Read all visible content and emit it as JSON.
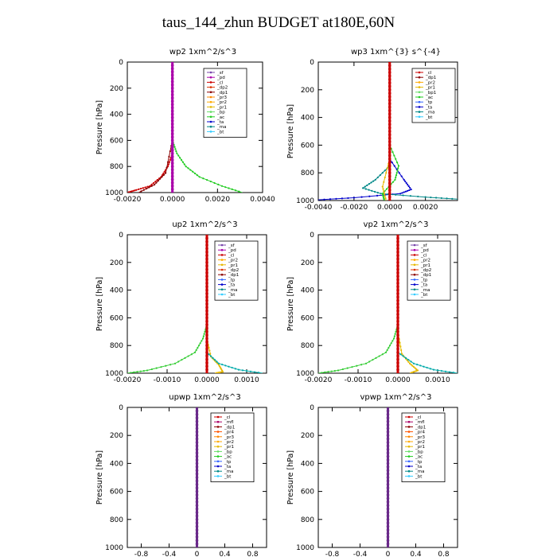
{
  "title": "taus_144_zhun  BUDGET at180E,60N",
  "chart_data": [
    {
      "type": "line",
      "title": "wp2   1xm^2/s^3",
      "ylabel": "Pressure [hPa]",
      "xlim": [
        -0.002,
        0.004
      ],
      "ylim": [
        1000,
        0
      ],
      "x_ticks": [
        "-0.0020",
        "0.0000",
        "0.0020",
        "0.0040"
      ],
      "y_ticks": [
        "0",
        "200",
        "400",
        "600",
        "800",
        "1000"
      ],
      "legend": [
        "_sf",
        "_pd",
        "_cl",
        "_dp2",
        "_dp1",
        "_pr3",
        "_pr2",
        "_pr1",
        "_bp",
        "_ac",
        "_ta",
        "_ma",
        "_bt"
      ],
      "series": [
        {
          "legend": "_cl",
          "color": "#cc0000",
          "points": [
            [
              0,
              0
            ],
            [
              0,
              500
            ],
            [
              0,
              700
            ],
            [
              -0.0002,
              800
            ],
            [
              -0.0005,
              880
            ],
            [
              -0.001,
              950
            ],
            [
              -0.0016,
              980
            ],
            [
              -0.002,
              1000
            ]
          ]
        },
        {
          "legend": "_dp1",
          "color": "#8b0000",
          "points": [
            [
              0,
              0
            ],
            [
              0,
              600
            ],
            [
              -0.0003,
              850
            ],
            [
              -0.0008,
              940
            ],
            [
              -0.0015,
              1000
            ]
          ]
        },
        {
          "legend": "_ac",
          "color": "#22cc22",
          "points": [
            [
              0,
              0
            ],
            [
              0,
              600
            ],
            [
              0.0002,
              700
            ],
            [
              0.0006,
              800
            ],
            [
              0.0012,
              880
            ],
            [
              0.0022,
              950
            ],
            [
              0.0031,
              1000
            ]
          ]
        },
        {
          "legend": "_pd",
          "color": "#aa00aa",
          "points": [
            [
              0,
              0
            ],
            [
              0,
              1000
            ]
          ]
        }
      ]
    },
    {
      "type": "line",
      "title": "wp3   1xm^{3} s^{-4}",
      "ylabel": "Pressure [hPa]",
      "xlim": [
        -0.004,
        0.0038
      ],
      "ylim": [
        1000,
        0
      ],
      "x_ticks": [
        "-0.0040",
        "-0.0020",
        "0.0000",
        "0.0020"
      ],
      "y_ticks": [
        "0",
        "200",
        "400",
        "600",
        "800",
        "1000"
      ],
      "legend": [
        "_cl",
        "_dp1",
        "_pr2",
        "_pr1",
        "_bp1",
        "_ac",
        "_tp",
        "_ta",
        "_ma",
        "_bt"
      ],
      "series": [
        {
          "legend": "_ta",
          "color": "#0000cc",
          "points": [
            [
              0,
              0
            ],
            [
              0,
              700
            ],
            [
              0.0008,
              850
            ],
            [
              0.0012,
              920
            ],
            [
              0.0006,
              950
            ],
            [
              -0.002,
              980
            ],
            [
              -0.004,
              995
            ]
          ]
        },
        {
          "legend": "_ma",
          "color": "#008888",
          "points": [
            [
              0,
              0
            ],
            [
              0,
              750
            ],
            [
              -0.0008,
              850
            ],
            [
              -0.0015,
              910
            ],
            [
              -0.0005,
              950
            ],
            [
              0.002,
              975
            ],
            [
              0.0038,
              990
            ]
          ]
        },
        {
          "legend": "_ac",
          "color": "#22cc22",
          "points": [
            [
              0,
              0
            ],
            [
              0,
              600
            ],
            [
              0.0005,
              750
            ],
            [
              0.0003,
              850
            ],
            [
              -0.0004,
              950
            ],
            [
              -0.0003,
              1000
            ]
          ]
        },
        {
          "legend": "_pr2",
          "color": "#e6b800",
          "points": [
            [
              0,
              0
            ],
            [
              0,
              700
            ],
            [
              -0.0004,
              900
            ],
            [
              -0.0002,
              1000
            ]
          ]
        },
        {
          "legend": "_cl",
          "color": "#cc0000",
          "points": [
            [
              0,
              0
            ],
            [
              0,
              1000
            ]
          ]
        }
      ]
    },
    {
      "type": "line",
      "title": "up2   1xm^2/s^3",
      "ylabel": "Pressure [hPa]",
      "xlim": [
        -0.002,
        0.0015
      ],
      "ylim": [
        1000,
        0
      ],
      "x_ticks": [
        "-0.0020",
        "-0.0010",
        "0.0000",
        "0.0010"
      ],
      "y_ticks": [
        "0",
        "200",
        "400",
        "600",
        "800",
        "1000"
      ],
      "legend": [
        "_sf",
        "_pd",
        "_cl",
        "_pr2",
        "_pr1",
        "_dp2",
        "_dp1",
        "_tp",
        "_ta",
        "_ma",
        "_bt"
      ],
      "series": [
        {
          "legend": "_dp1",
          "color": "#33cc33",
          "points": [
            [
              0,
              0
            ],
            [
              0,
              650
            ],
            [
              -0.0001,
              750
            ],
            [
              -0.0003,
              850
            ],
            [
              -0.0008,
              930
            ],
            [
              -0.0015,
              980
            ],
            [
              -0.002,
              1000
            ]
          ]
        },
        {
          "legend": "_pr1",
          "color": "#e6b800",
          "points": [
            [
              0,
              0
            ],
            [
              0,
              750
            ],
            [
              0.0001,
              880
            ],
            [
              0.0003,
              940
            ],
            [
              0.0004,
              990
            ],
            [
              0.0002,
              1000
            ]
          ]
        },
        {
          "legend": "_ta",
          "color": "#00aaaa",
          "points": [
            [
              0,
              0
            ],
            [
              0,
              850
            ],
            [
              0.0003,
              930
            ],
            [
              0.0008,
              975
            ],
            [
              0.0014,
              1000
            ]
          ]
        },
        {
          "legend": "_cl",
          "color": "#cc0000",
          "points": [
            [
              0,
              0
            ],
            [
              0,
              1000
            ]
          ]
        }
      ]
    },
    {
      "type": "line",
      "title": "vp2   1xm^2/s^3",
      "ylabel": "Pressure [hPa]",
      "xlim": [
        -0.002,
        0.0015
      ],
      "ylim": [
        1000,
        0
      ],
      "x_ticks": [
        "-0.0020",
        "-0.0010",
        "0.0000",
        "0.0010"
      ],
      "y_ticks": [
        "0",
        "200",
        "400",
        "600",
        "800",
        "1000"
      ],
      "legend": [
        "_sf",
        "_pd",
        "_cl",
        "_pr2",
        "_pr1",
        "_dp2",
        "_dp1",
        "_tp",
        "_ta",
        "_ma",
        "_bt"
      ],
      "series": [
        {
          "legend": "_dp1",
          "color": "#33cc33",
          "points": [
            [
              0,
              0
            ],
            [
              0,
              650
            ],
            [
              -0.0001,
              750
            ],
            [
              -0.0003,
              850
            ],
            [
              -0.0008,
              930
            ],
            [
              -0.0015,
              980
            ],
            [
              -0.002,
              1000
            ]
          ]
        },
        {
          "legend": "_pr1",
          "color": "#e6b800",
          "points": [
            [
              0,
              0
            ],
            [
              0,
              700
            ],
            [
              0.0001,
              860
            ],
            [
              0.0003,
              930
            ],
            [
              0.0005,
              980
            ],
            [
              0.0003,
              1000
            ]
          ]
        },
        {
          "legend": "_ta",
          "color": "#00aaaa",
          "points": [
            [
              0,
              0
            ],
            [
              0,
              850
            ],
            [
              0.0004,
              930
            ],
            [
              0.0009,
              975
            ],
            [
              0.0015,
              1000
            ]
          ]
        },
        {
          "legend": "_cl",
          "color": "#cc0000",
          "points": [
            [
              0,
              0
            ],
            [
              0,
              1000
            ]
          ]
        }
      ]
    },
    {
      "type": "line",
      "title": "upwp   1xm^2/s^3",
      "ylabel": "Pressure [hPa]",
      "xlim": [
        -1.0,
        1.0
      ],
      "ylim": [
        1000,
        0
      ],
      "x_ticks": [
        "-0.8",
        "-0.4",
        "0",
        "0.4",
        "0.8"
      ],
      "y_ticks": [
        "0",
        "200",
        "400",
        "600",
        "800",
        "1000"
      ],
      "legend": [
        "_cl",
        "_mfl",
        "_dp1",
        "_pr4",
        "_pr3",
        "_pr2",
        "_pr1",
        "_bp",
        "_ac",
        "_tp",
        "_ta",
        "_ma",
        "_bt"
      ],
      "series": [
        {
          "legend": "_cl",
          "color": "#6a2a8a",
          "points": [
            [
              0,
              0
            ],
            [
              0,
              1000
            ]
          ]
        }
      ]
    },
    {
      "type": "line",
      "title": "vpwp   1xm^2/s^3",
      "ylabel": "Pressure [hPa]",
      "xlim": [
        -1.0,
        1.0
      ],
      "ylim": [
        1000,
        0
      ],
      "x_ticks": [
        "-0.8",
        "-0.4",
        "0",
        "0.4",
        "0.8"
      ],
      "y_ticks": [
        "0",
        "200",
        "400",
        "600",
        "800",
        "1000"
      ],
      "legend": [
        "_cl",
        "_mfl",
        "_dp1",
        "_pr4",
        "_pr3",
        "_pr2",
        "_pr1",
        "_bp",
        "_ac",
        "_tp",
        "_ta",
        "_ma",
        "_bt"
      ],
      "series": [
        {
          "legend": "_cl",
          "color": "#6a2a8a",
          "points": [
            [
              0,
              0
            ],
            [
              0,
              1000
            ]
          ]
        }
      ]
    }
  ],
  "legend_colors": {
    "_sf": "#7744aa",
    "_pd": "#aa00aa",
    "_cl": "#cc0000",
    "_mfl": "#aa0066",
    "_dp1": "#8b0000",
    "_dp2": "#dd3300",
    "_pr1": "#e6b800",
    "_pr2": "#ffaa00",
    "_pr3": "#ff8800",
    "_pr4": "#ff5500",
    "_bp": "#66dd66",
    "_bp1": "#66dd66",
    "_ac": "#22cc22",
    "_tp": "#3366ff",
    "_ta": "#0000cc",
    "_ma": "#008888",
    "_bt": "#33ccff"
  }
}
